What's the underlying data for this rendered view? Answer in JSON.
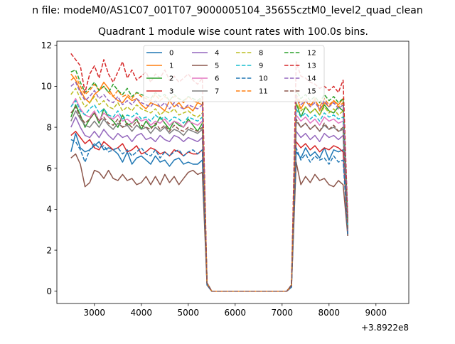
{
  "figure": {
    "suptitle": "n file: modeM0/AS1C07_001T07_9000005104_35655cztM0_level2_quad_clean",
    "title": "Quadrant 1 module wise count rates with 100.0s bins.",
    "x_offset_label": "+3.8922e8"
  },
  "chart_data": {
    "type": "line",
    "title": "Quadrant 1 module wise count rates with 100.0s bins.",
    "xlabel": "",
    "ylabel": "",
    "x_offset": 389220000,
    "xlim": [
      2200,
      9700
    ],
    "ylim": [
      -0.6,
      12.2
    ],
    "x_ticks": [
      3000,
      4000,
      5000,
      6000,
      7000,
      8000,
      9000
    ],
    "x_tick_labels": [
      "3000",
      "4000",
      "5000",
      "6000",
      "7000",
      "8000",
      "9000"
    ],
    "y_ticks": [
      0,
      2,
      4,
      6,
      8,
      10,
      12
    ],
    "y_tick_labels": [
      "0",
      "2",
      "4",
      "6",
      "8",
      "10",
      "12"
    ],
    "grid": false,
    "legend_position": "top-center",
    "legend_columns": 4,
    "x_bins_start": 2500,
    "x_bin_width": 100,
    "series": [
      {
        "name": "0",
        "color": "#1f77b4",
        "dash": "solid",
        "values": [
          6.8,
          7.7,
          7.0,
          6.8,
          6.9,
          7.1,
          7.3,
          6.9,
          7.0,
          6.9,
          6.7,
          6.3,
          6.8,
          6.2,
          6.5,
          6.6,
          6.4,
          6.2,
          6.6,
          6.3,
          6.4,
          6.1,
          6.4,
          6.5,
          6.2,
          6.3,
          6.2,
          6.2,
          6.4,
          0.3,
          0.0,
          0,
          0,
          0,
          0,
          0,
          0,
          0,
          0,
          0,
          0,
          0,
          0,
          0,
          0,
          0,
          0,
          0.2,
          6.8,
          6.5,
          7.0,
          6.6,
          6.8,
          6.5,
          7.0,
          6.4,
          6.9,
          6.8,
          6.9,
          2.7
        ]
      },
      {
        "name": "1",
        "color": "#ff7f0e",
        "dash": "solid",
        "values": [
          10.6,
          10.3,
          9.8,
          9.4,
          9.2,
          9.6,
          9.8,
          10.2,
          9.9,
          9.5,
          9.3,
          9.2,
          9.5,
          9.3,
          9.4,
          9.1,
          8.9,
          9.2,
          9.1,
          9.0,
          8.8,
          9.3,
          9.0,
          9.2,
          8.9,
          9.0,
          8.8,
          9.2,
          9.1,
          0.4,
          0.0,
          0,
          0,
          0,
          0,
          0,
          0,
          0,
          0,
          0,
          0,
          0,
          0,
          0,
          0,
          0,
          0,
          0.3,
          9.5,
          8.9,
          9.3,
          9.0,
          9.4,
          8.8,
          9.2,
          9.0,
          9.3,
          9.1,
          9.4,
          3.0
        ]
      },
      {
        "name": "2",
        "color": "#2ca02c",
        "dash": "solid",
        "values": [
          8.5,
          9.1,
          8.6,
          8.0,
          8.4,
          8.7,
          8.2,
          8.9,
          8.5,
          8.3,
          8.0,
          8.6,
          8.1,
          8.2,
          8.4,
          7.9,
          8.3,
          8.0,
          8.1,
          8.5,
          8.2,
          7.9,
          8.3,
          8.1,
          8.0,
          8.4,
          8.1,
          7.8,
          8.2,
          0.4,
          0.0,
          0,
          0,
          0,
          0,
          0,
          0,
          0,
          0,
          0,
          0,
          0,
          0,
          0,
          0,
          0,
          0,
          0.3,
          9.2,
          8.5,
          9.0,
          8.7,
          8.9,
          8.6,
          9.1,
          8.8,
          8.7,
          9.0,
          8.8,
          3.1
        ]
      },
      {
        "name": "3",
        "color": "#d62728",
        "dash": "solid",
        "values": [
          7.6,
          7.8,
          7.5,
          7.2,
          7.4,
          7.0,
          6.9,
          7.3,
          7.1,
          6.9,
          7.0,
          7.2,
          6.8,
          6.9,
          7.1,
          6.7,
          6.8,
          7.0,
          6.9,
          6.7,
          6.8,
          6.6,
          6.9,
          6.8,
          6.6,
          6.8,
          6.7,
          6.7,
          6.9,
          0.4,
          0.0,
          0,
          0,
          0,
          0,
          0,
          0,
          0,
          0,
          0,
          0,
          0,
          0,
          0,
          0,
          0,
          0,
          0.3,
          7.3,
          7.0,
          7.2,
          6.9,
          7.1,
          6.8,
          7.0,
          6.9,
          7.1,
          7.0,
          6.8,
          2.8
        ]
      },
      {
        "name": "4",
        "color": "#9467bd",
        "dash": "solid",
        "values": [
          8.0,
          8.5,
          8.0,
          7.6,
          7.5,
          7.8,
          7.5,
          7.9,
          7.6,
          7.4,
          7.7,
          7.5,
          7.6,
          7.3,
          7.6,
          7.7,
          7.4,
          7.5,
          7.3,
          7.6,
          7.4,
          7.3,
          7.6,
          7.5,
          7.3,
          7.5,
          7.4,
          7.3,
          7.5,
          0.4,
          0.0,
          0,
          0,
          0,
          0,
          0,
          0,
          0,
          0,
          0,
          0,
          0,
          0,
          0,
          0,
          0,
          0,
          0.3,
          7.8,
          7.5,
          7.7,
          7.4,
          7.6,
          7.3,
          7.7,
          7.5,
          7.6,
          7.4,
          7.6,
          2.9
        ]
      },
      {
        "name": "5",
        "color": "#8c564b",
        "dash": "solid",
        "values": [
          6.5,
          6.7,
          6.2,
          5.1,
          5.3,
          5.9,
          5.8,
          5.5,
          5.9,
          5.5,
          5.4,
          5.7,
          5.4,
          5.5,
          5.2,
          5.3,
          5.6,
          5.2,
          5.6,
          5.2,
          5.7,
          5.3,
          5.6,
          5.2,
          5.5,
          5.8,
          5.9,
          5.7,
          5.8,
          0.3,
          0.0,
          0,
          0,
          0,
          0,
          0,
          0,
          0,
          0,
          0,
          0,
          0,
          0,
          0,
          0,
          0,
          0,
          0.2,
          6.3,
          5.2,
          5.6,
          5.3,
          5.7,
          5.4,
          5.5,
          5.2,
          5.1,
          5.4,
          5.2,
          2.7
        ]
      },
      {
        "name": "6",
        "color": "#e377c2",
        "dash": "solid",
        "values": [
          9.0,
          9.4,
          8.9,
          8.6,
          8.5,
          8.8,
          8.3,
          8.7,
          8.5,
          8.4,
          8.6,
          8.3,
          8.4,
          8.2,
          8.5,
          8.3,
          8.4,
          8.1,
          8.3,
          8.2,
          8.4,
          8.1,
          8.3,
          8.2,
          8.0,
          8.3,
          8.2,
          8.1,
          8.3,
          0.4,
          0.0,
          0,
          0,
          0,
          0,
          0,
          0,
          0,
          0,
          0,
          0,
          0,
          0,
          0,
          0,
          0,
          0,
          0.3,
          8.6,
          8.3,
          8.5,
          8.2,
          8.4,
          8.1,
          8.5,
          8.3,
          8.4,
          8.2,
          8.3,
          3.0
        ]
      },
      {
        "name": "7",
        "color": "#7f7f7f",
        "dash": "solid",
        "values": [
          8.3,
          8.8,
          8.4,
          8.1,
          8.0,
          8.3,
          8.0,
          8.4,
          8.1,
          7.9,
          8.2,
          8.0,
          8.1,
          7.8,
          8.1,
          7.9,
          8.0,
          7.7,
          8.0,
          7.8,
          8.0,
          7.7,
          7.9,
          7.8,
          7.6,
          7.9,
          7.8,
          7.7,
          7.9,
          0.4,
          0.0,
          0,
          0,
          0,
          0,
          0,
          0,
          0,
          0,
          0,
          0,
          0,
          0,
          0,
          0,
          0,
          0,
          0.3,
          8.3,
          8.0,
          8.2,
          7.9,
          8.1,
          7.8,
          8.1,
          7.9,
          8.0,
          7.8,
          7.9,
          3.0
        ]
      },
      {
        "name": "8",
        "color": "#bcbd22",
        "dash": "dashed",
        "values": [
          9.6,
          9.9,
          9.4,
          9.0,
          9.2,
          9.5,
          9.1,
          9.3,
          9.0,
          8.9,
          9.2,
          8.8,
          9.0,
          8.8,
          9.1,
          8.9,
          8.8,
          8.7,
          8.9,
          8.6,
          8.8,
          8.7,
          8.9,
          8.6,
          8.7,
          8.8,
          8.6,
          8.5,
          8.7,
          0.4,
          0.0,
          0,
          0,
          0,
          0,
          0,
          0,
          0,
          0,
          0,
          0,
          0,
          0,
          0,
          0,
          0,
          0,
          0.3,
          9.2,
          8.8,
          9.0,
          8.7,
          8.9,
          8.6,
          9.0,
          8.7,
          8.9,
          8.6,
          8.8,
          3.2
        ]
      },
      {
        "name": "9",
        "color": "#17becf",
        "dash": "dashed",
        "values": [
          9.0,
          9.3,
          8.8,
          8.6,
          8.9,
          9.1,
          8.7,
          8.9,
          8.6,
          8.5,
          8.8,
          8.4,
          8.6,
          8.5,
          8.7,
          8.4,
          8.5,
          8.3,
          8.6,
          8.4,
          8.5,
          8.3,
          8.5,
          8.4,
          8.2,
          8.5,
          8.4,
          8.3,
          8.5,
          0.4,
          0.0,
          0,
          0,
          0,
          0,
          0,
          0,
          0,
          0,
          0,
          0,
          0,
          0,
          0,
          0,
          0,
          0,
          0.3,
          8.9,
          8.5,
          8.7,
          8.4,
          8.6,
          8.3,
          8.7,
          8.5,
          8.6,
          8.4,
          8.5,
          3.1
        ]
      },
      {
        "name": "10",
        "color": "#1f77b4",
        "dash": "dashed",
        "values": [
          7.4,
          7.3,
          6.9,
          6.3,
          6.9,
          7.2,
          7.0,
          7.1,
          6.8,
          6.9,
          7.0,
          6.7,
          6.9,
          6.6,
          6.8,
          7.0,
          6.7,
          6.6,
          6.9,
          6.5,
          6.8,
          6.6,
          6.8,
          6.9,
          6.6,
          6.8,
          6.9,
          6.7,
          6.9,
          0.3,
          0.0,
          0,
          0,
          0,
          0,
          0,
          0,
          0,
          0,
          0,
          0,
          0,
          0,
          0,
          0,
          0,
          0,
          0.2,
          7.0,
          6.4,
          6.7,
          6.3,
          6.6,
          6.4,
          6.5,
          6.2,
          6.6,
          6.3,
          6.4,
          2.8
        ]
      },
      {
        "name": "11",
        "color": "#ff7f0e",
        "dash": "dashed",
        "values": [
          10.3,
          10.5,
          10.0,
          9.6,
          9.8,
          10.1,
          9.8,
          10.0,
          9.7,
          9.5,
          9.8,
          9.5,
          9.6,
          9.4,
          9.7,
          9.5,
          9.4,
          9.3,
          9.6,
          9.3,
          9.5,
          9.3,
          9.5,
          9.4,
          9.2,
          9.5,
          9.3,
          9.2,
          9.4,
          0.4,
          0.0,
          0,
          0,
          0,
          0,
          0,
          0,
          0,
          0,
          0,
          0,
          0,
          0,
          0,
          0,
          0,
          0,
          0.3,
          9.6,
          9.2,
          9.4,
          9.1,
          9.3,
          9.0,
          9.4,
          9.1,
          9.3,
          9.0,
          9.2,
          3.4
        ]
      },
      {
        "name": "12",
        "color": "#2ca02c",
        "dash": "dashed",
        "values": [
          10.7,
          10.8,
          10.2,
          9.7,
          9.9,
          10.2,
          9.8,
          10.0,
          9.7,
          10.1,
          9.8,
          9.6,
          9.9,
          9.5,
          9.7,
          9.6,
          9.5,
          9.4,
          9.7,
          9.5,
          9.6,
          9.3,
          9.6,
          9.4,
          9.3,
          9.5,
          9.4,
          9.3,
          9.5,
          0.4,
          0.0,
          0,
          0,
          0,
          0,
          0,
          0,
          0,
          0,
          0,
          0,
          0,
          0,
          0,
          0,
          0,
          0,
          0.3,
          9.8,
          9.4,
          9.6,
          9.3,
          9.5,
          9.2,
          9.6,
          9.3,
          9.5,
          9.2,
          9.4,
          3.5
        ]
      },
      {
        "name": "13",
        "color": "#d62728",
        "dash": "dashed",
        "values": [
          11.6,
          11.3,
          11.0,
          9.7,
          10.6,
          11.0,
          10.4,
          11.3,
          10.6,
          10.2,
          10.7,
          11.2,
          10.4,
          10.8,
          10.3,
          10.5,
          10.7,
          10.2,
          10.6,
          10.4,
          10.8,
          10.3,
          10.5,
          10.2,
          10.4,
          10.6,
          10.3,
          10.1,
          10.4,
          0.4,
          0.0,
          0,
          0,
          0,
          0,
          0,
          0,
          0,
          0,
          0,
          0,
          0,
          0,
          0,
          0,
          0,
          0,
          0.3,
          11.2,
          10.5,
          10.4,
          10.2,
          10.1,
          9.9,
          10.0,
          9.8,
          10.0,
          9.7,
          10.3,
          3.6
        ]
      },
      {
        "name": "14",
        "color": "#9467bd",
        "dash": "dashed",
        "values": [
          10.0,
          10.2,
          9.7,
          9.3,
          9.5,
          9.8,
          9.4,
          9.6,
          9.3,
          9.2,
          9.5,
          9.1,
          9.3,
          9.1,
          9.4,
          9.2,
          9.1,
          9.0,
          9.3,
          9.0,
          9.2,
          8.9,
          9.2,
          9.0,
          8.9,
          9.1,
          9.0,
          8.9,
          9.1,
          0.4,
          0.0,
          0,
          0,
          0,
          0,
          0,
          0,
          0,
          0,
          0,
          0,
          0,
          0,
          0,
          0,
          0,
          0,
          0.3,
          9.5,
          9.1,
          9.3,
          9.0,
          9.2,
          8.9,
          9.3,
          9.0,
          9.2,
          8.9,
          9.1,
          3.4
        ]
      },
      {
        "name": "15",
        "color": "#8c564b",
        "dash": "dashed",
        "values": [
          8.7,
          9.0,
          8.5,
          8.2,
          8.4,
          8.7,
          8.3,
          8.5,
          8.2,
          8.1,
          8.4,
          8.0,
          8.2,
          8.0,
          8.3,
          8.1,
          8.0,
          7.9,
          8.2,
          7.9,
          8.1,
          7.8,
          8.1,
          7.9,
          7.8,
          8.0,
          7.9,
          7.8,
          8.0,
          0.4,
          0.0,
          0,
          0,
          0,
          0,
          0,
          0,
          0,
          0,
          0,
          0,
          0,
          0,
          0,
          0,
          0,
          0,
          0.3,
          8.4,
          8.0,
          8.2,
          7.9,
          8.1,
          7.8,
          8.2,
          7.9,
          8.1,
          7.8,
          8.0,
          3.0
        ]
      }
    ]
  }
}
